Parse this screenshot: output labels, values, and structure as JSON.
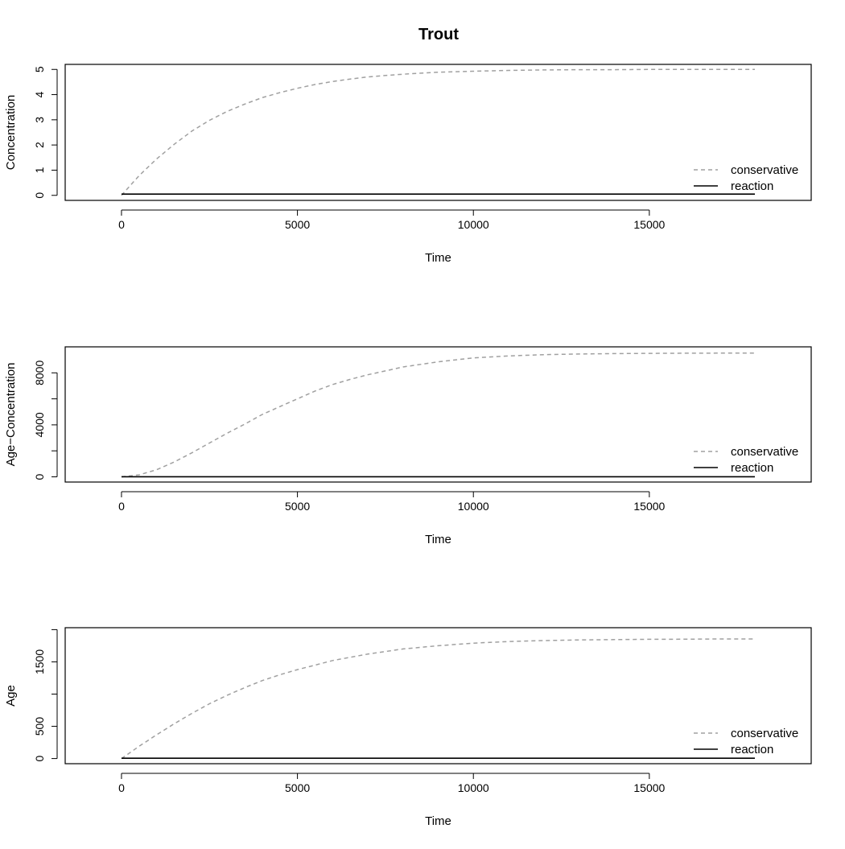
{
  "figure": {
    "title": "Trout"
  },
  "chart_data": [
    {
      "type": "line",
      "title": "Trout",
      "xlabel": "Time",
      "ylabel": "Concentration",
      "xlim": [
        -1600,
        19600
      ],
      "ylim": [
        -0.2,
        5.2
      ],
      "xticks": [
        0,
        5000,
        10000,
        15000
      ],
      "xtick_labels": [
        "0",
        "5000",
        "10000",
        "15000"
      ],
      "yticks": [
        0,
        1,
        2,
        3,
        4,
        5
      ],
      "ytick_labels": [
        "0",
        "1",
        "2",
        "3",
        "4",
        "5"
      ],
      "grid": false,
      "legend_position": "bottom-right",
      "series": [
        {
          "name": "conservative",
          "color": "#a0a0a0",
          "dash": "dashed",
          "x": [
            0,
            500,
            1000,
            1500,
            2000,
            2500,
            3000,
            3500,
            4000,
            4500,
            5000,
            5500,
            6000,
            6500,
            7000,
            7500,
            8000,
            9000,
            10000,
            11000,
            12000,
            13000,
            14000,
            15000,
            16000,
            17000,
            18000
          ],
          "y": [
            0.0,
            0.78,
            1.45,
            2.03,
            2.55,
            2.98,
            3.33,
            3.62,
            3.88,
            4.08,
            4.25,
            4.4,
            4.52,
            4.62,
            4.7,
            4.76,
            4.81,
            4.89,
            4.93,
            4.96,
            4.98,
            4.99,
            4.99,
            5.0,
            5.0,
            5.0,
            5.0
          ]
        },
        {
          "name": "reaction",
          "color": "#000000",
          "dash": "solid",
          "x": [
            0,
            18000
          ],
          "y": [
            0.05,
            0.05
          ]
        }
      ]
    },
    {
      "type": "line",
      "xlabel": "Time",
      "ylabel": "Age−Concentration",
      "xlim": [
        -1600,
        19600
      ],
      "ylim": [
        -400,
        10000
      ],
      "xticks": [
        0,
        5000,
        10000,
        15000
      ],
      "xtick_labels": [
        "0",
        "5000",
        "10000",
        "15000"
      ],
      "yticks": [
        0,
        2000,
        4000,
        6000,
        8000
      ],
      "ytick_labels": [
        "0",
        "",
        "4000",
        "",
        "8000"
      ],
      "grid": false,
      "legend_position": "bottom-right",
      "series": [
        {
          "name": "conservative",
          "color": "#a0a0a0",
          "dash": "dashed",
          "x": [
            0,
            500,
            1000,
            1500,
            2000,
            2500,
            3000,
            3500,
            4000,
            4500,
            5000,
            5500,
            6000,
            6500,
            7000,
            7500,
            8000,
            9000,
            10000,
            11000,
            12000,
            13000,
            14000,
            15000,
            16000,
            17000,
            18000
          ],
          "y": [
            0,
            150,
            550,
            1150,
            1850,
            2600,
            3350,
            4050,
            4800,
            5400,
            6000,
            6600,
            7100,
            7500,
            7850,
            8150,
            8450,
            8850,
            9150,
            9300,
            9400,
            9450,
            9480,
            9500,
            9510,
            9520,
            9520
          ]
        },
        {
          "name": "reaction",
          "color": "#000000",
          "dash": "solid",
          "x": [
            0,
            18000
          ],
          "y": [
            10,
            10
          ]
        }
      ]
    },
    {
      "type": "line",
      "xlabel": "Time",
      "ylabel": "Age",
      "xlim": [
        -1600,
        19600
      ],
      "ylim": [
        -80,
        2030
      ],
      "xticks": [
        0,
        5000,
        10000,
        15000
      ],
      "xtick_labels": [
        "0",
        "5000",
        "10000",
        "15000"
      ],
      "yticks": [
        0,
        500,
        1000,
        1500,
        2000
      ],
      "ytick_labels": [
        "0",
        "500",
        "",
        "1500",
        ""
      ],
      "grid": false,
      "legend_position": "bottom-right",
      "series": [
        {
          "name": "conservative",
          "color": "#a0a0a0",
          "dash": "dashed",
          "x": [
            0,
            500,
            1000,
            1500,
            2000,
            2500,
            3000,
            3500,
            4000,
            4500,
            5000,
            5500,
            6000,
            6500,
            7000,
            7500,
            8000,
            9000,
            10000,
            11000,
            12000,
            13000,
            14000,
            15000,
            16000,
            17000,
            18000
          ],
          "y": [
            0,
            190,
            370,
            540,
            700,
            850,
            980,
            1100,
            1210,
            1300,
            1380,
            1450,
            1520,
            1570,
            1620,
            1660,
            1700,
            1750,
            1790,
            1815,
            1830,
            1840,
            1845,
            1850,
            1852,
            1855,
            1855
          ]
        },
        {
          "name": "reaction",
          "color": "#000000",
          "dash": "solid",
          "x": [
            0,
            18000
          ],
          "y": [
            5,
            5
          ]
        }
      ]
    }
  ]
}
